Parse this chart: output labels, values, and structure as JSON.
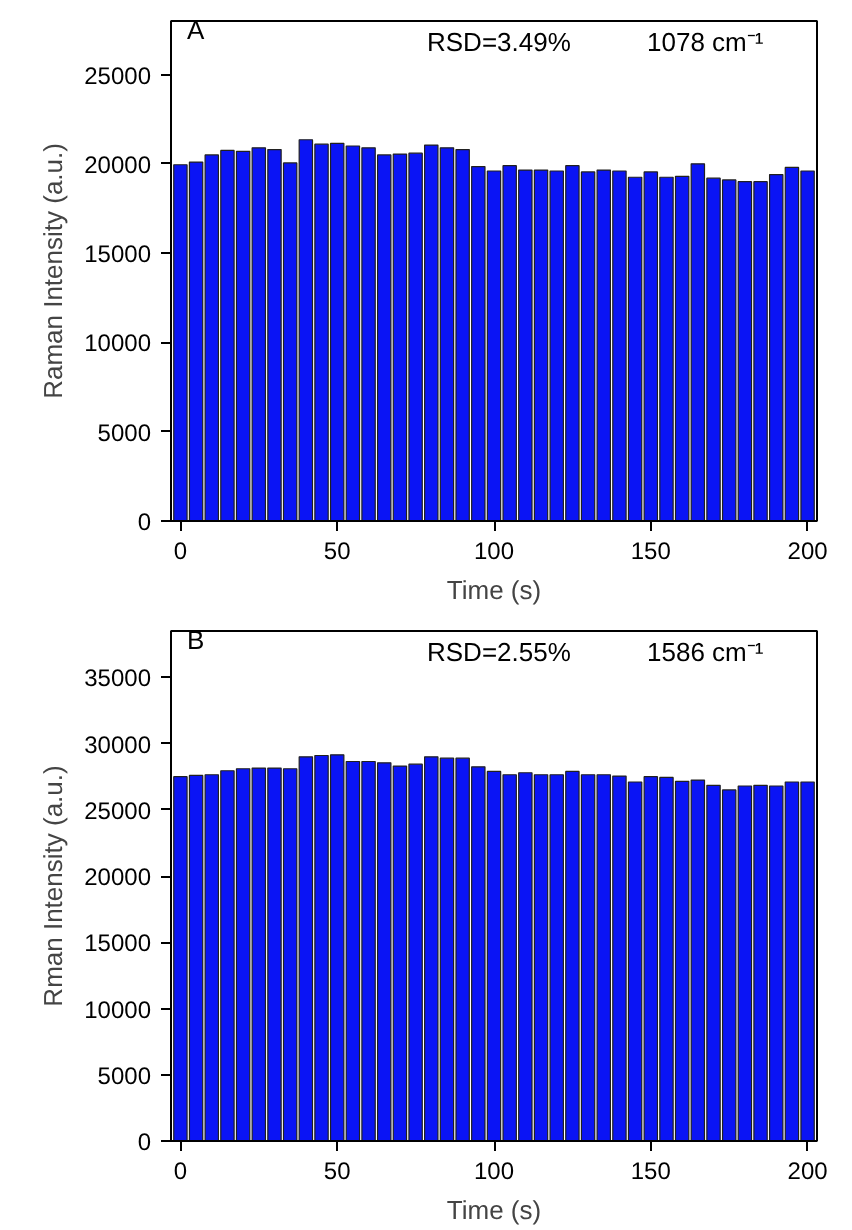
{
  "chart_data": [
    {
      "type": "bar",
      "xlabel": "Time (s)",
      "ylabel": "Raman Intensity (a.u.)",
      "annotations": [
        "A",
        "RSD=3.49%",
        "1078 cm⁻¹"
      ],
      "x": [
        0,
        5,
        10,
        15,
        20,
        25,
        30,
        35,
        40,
        45,
        50,
        55,
        60,
        65,
        70,
        75,
        80,
        85,
        90,
        95,
        100,
        105,
        110,
        115,
        120,
        125,
        130,
        135,
        140,
        145,
        150,
        155,
        160,
        165,
        170,
        175,
        180,
        185,
        190,
        195,
        200
      ],
      "values": [
        19950,
        20100,
        20500,
        20750,
        20700,
        20900,
        20800,
        20050,
        21350,
        21100,
        21150,
        21000,
        20900,
        20500,
        20550,
        20600,
        21050,
        20900,
        20800,
        19850,
        19600,
        19900,
        19650,
        19650,
        19600,
        19900,
        19550,
        19650,
        19600,
        19250,
        19550,
        19250,
        19300,
        20000,
        19200,
        19100,
        19000,
        19000,
        19400,
        19800,
        19600
      ],
      "color": "#0a14f5",
      "xlim": [
        -3,
        203
      ],
      "ylim": [
        0,
        28000
      ],
      "xticks": [
        0,
        50,
        100,
        150,
        200
      ],
      "yticks": [
        0,
        5000,
        10000,
        15000,
        20000,
        25000
      ],
      "grid": false
    },
    {
      "type": "bar",
      "xlabel": "Time (s)",
      "ylabel": "Rman Intensity (a.u.)",
      "annotations": [
        "B",
        "RSD=2.55%",
        "1586 cm⁻¹"
      ],
      "x": [
        0,
        5,
        10,
        15,
        20,
        25,
        30,
        35,
        40,
        45,
        50,
        55,
        60,
        65,
        70,
        75,
        80,
        85,
        90,
        95,
        100,
        105,
        110,
        115,
        120,
        125,
        130,
        135,
        140,
        145,
        150,
        155,
        160,
        165,
        170,
        175,
        180,
        185,
        190,
        195,
        200
      ],
      "values": [
        27500,
        27600,
        27650,
        27950,
        28100,
        28150,
        28150,
        28100,
        29000,
        29100,
        29150,
        28650,
        28650,
        28550,
        28300,
        28450,
        29000,
        28900,
        28900,
        28250,
        27900,
        27650,
        27800,
        27650,
        27650,
        27900,
        27650,
        27650,
        27550,
        27100,
        27500,
        27450,
        27150,
        27250,
        26850,
        26500,
        26800,
        26850,
        26800,
        27100,
        27100
      ],
      "color": "#0a14f5",
      "xlim": [
        -3,
        203
      ],
      "ylim": [
        0,
        38500
      ],
      "xticks": [
        0,
        50,
        100,
        150,
        200
      ],
      "yticks": [
        0,
        5000,
        10000,
        15000,
        20000,
        25000,
        30000,
        35000
      ],
      "grid": false
    }
  ]
}
